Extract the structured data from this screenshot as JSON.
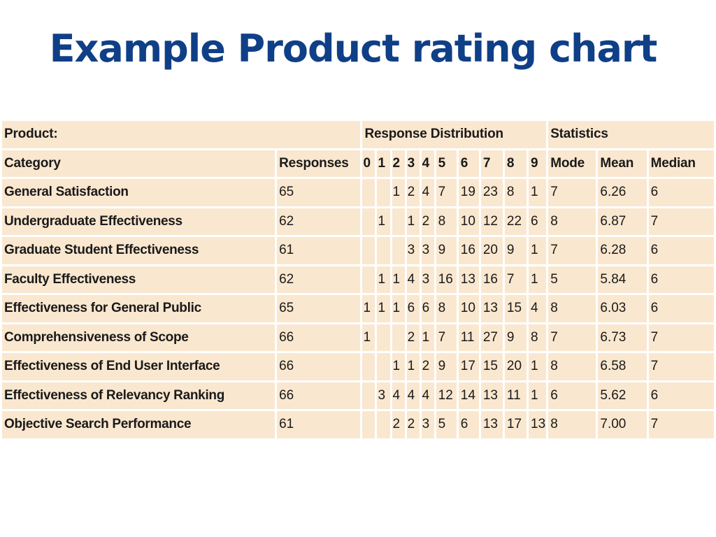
{
  "slide": {
    "title": "Example Product rating chart"
  },
  "table": {
    "group_headers": {
      "product": "Product:",
      "distribution": "Response Distribution",
      "statistics": "Statistics"
    },
    "columns": {
      "category": "Category",
      "responses": "Responses",
      "ratings": [
        "0",
        "1",
        "2",
        "3",
        "4",
        "5",
        "6",
        "7",
        "8",
        "9"
      ],
      "mode": "Mode",
      "mean": "Mean",
      "median": "Median"
    },
    "rows": [
      {
        "category": "General Satisfaction",
        "responses": "65",
        "dist": [
          "",
          "",
          "1",
          "2",
          "4",
          "7",
          "19",
          "23",
          "8",
          "1"
        ],
        "mode": "7",
        "mean": "6.26",
        "median": "6"
      },
      {
        "category": "Undergraduate Effectiveness",
        "responses": "62",
        "dist": [
          "",
          "1",
          "",
          "1",
          "2",
          "8",
          "10",
          "12",
          "22",
          "6"
        ],
        "mode": "8",
        "mean": "6.87",
        "median": "7"
      },
      {
        "category": "Graduate Student Effectiveness",
        "responses": "61",
        "dist": [
          "",
          "",
          "",
          "3",
          "3",
          "9",
          "16",
          "20",
          "9",
          "1"
        ],
        "mode": "7",
        "mean": "6.28",
        "median": "6"
      },
      {
        "category": "Faculty Effectiveness",
        "responses": "62",
        "dist": [
          "",
          "1",
          "1",
          "4",
          "3",
          "16",
          "13",
          "16",
          "7",
          "1"
        ],
        "mode": "5",
        "mean": "5.84",
        "median": "6"
      },
      {
        "category": "Effectiveness for General Public",
        "responses": "65",
        "dist": [
          "1",
          "1",
          "1",
          "6",
          "6",
          "8",
          "10",
          "13",
          "15",
          "4"
        ],
        "mode": "8",
        "mean": "6.03",
        "median": "6"
      },
      {
        "category": "Comprehensiveness of Scope",
        "responses": "66",
        "dist": [
          "1",
          "",
          "",
          "2",
          "1",
          "7",
          "11",
          "27",
          "9",
          "8"
        ],
        "mode": "7",
        "mean": "6.73",
        "median": "7"
      },
      {
        "category": "Effectiveness of End User Interface",
        "responses": "66",
        "dist": [
          "",
          "",
          "1",
          "1",
          "2",
          "9",
          "17",
          "15",
          "20",
          "1"
        ],
        "mode": "8",
        "mean": "6.58",
        "median": "7"
      },
      {
        "category": "Effectiveness of Relevancy Ranking",
        "responses": "66",
        "dist": [
          "",
          "3",
          "4",
          "4",
          "4",
          "12",
          "14",
          "13",
          "11",
          "1"
        ],
        "mode": "6",
        "mean": "5.62",
        "median": "6"
      },
      {
        "category": "Objective Search Performance",
        "responses": "61",
        "dist": [
          "",
          "",
          "2",
          "2",
          "3",
          "5",
          "6",
          "13",
          "17",
          "13"
        ],
        "mode": "8",
        "mean": "7.00",
        "median": "7"
      }
    ]
  }
}
